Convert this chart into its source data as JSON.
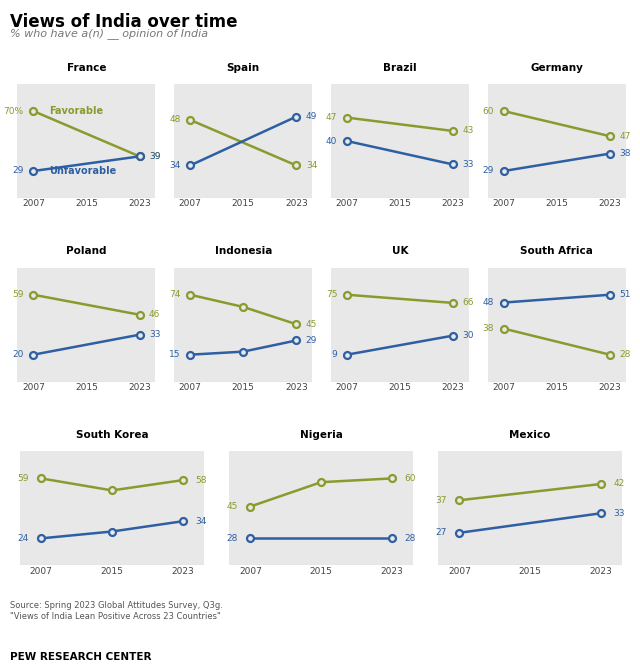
{
  "title": "Views of India over time",
  "subtitle": "% who have a(n) __ opinion of India",
  "source": "Source: Spring 2023 Global Attitudes Survey, Q3g.\n\"Views of India Lean Positive Across 23 Countries\"",
  "pew": "PEW RESEARCH CENTER",
  "years": [
    2007,
    2015,
    2023
  ],
  "fav_color": "#8b9a2e",
  "unfav_color": "#2e5fa3",
  "bg_color": "#e8e8e8",
  "charts": [
    {
      "title": "France",
      "favorable": [
        70,
        null,
        39
      ],
      "unfavorable": [
        29,
        null,
        39
      ],
      "show_legend": true,
      "row": 0,
      "col": 0
    },
    {
      "title": "Spain",
      "favorable": [
        48,
        null,
        34
      ],
      "unfavorable": [
        34,
        null,
        49
      ],
      "show_legend": false,
      "row": 0,
      "col": 1
    },
    {
      "title": "Brazil",
      "favorable": [
        47,
        null,
        43
      ],
      "unfavorable": [
        40,
        null,
        33
      ],
      "show_legend": false,
      "row": 0,
      "col": 2
    },
    {
      "title": "Germany",
      "favorable": [
        60,
        null,
        47
      ],
      "unfavorable": [
        29,
        null,
        38
      ],
      "show_legend": false,
      "row": 0,
      "col": 3
    },
    {
      "title": "Poland",
      "favorable": [
        59,
        null,
        46
      ],
      "unfavorable": [
        20,
        null,
        33
      ],
      "show_legend": false,
      "row": 1,
      "col": 0
    },
    {
      "title": "Indonesia",
      "favorable": [
        74,
        62,
        45
      ],
      "unfavorable": [
        15,
        18,
        29
      ],
      "show_legend": false,
      "row": 1,
      "col": 1
    },
    {
      "title": "UK",
      "favorable": [
        75,
        null,
        66
      ],
      "unfavorable": [
        9,
        null,
        30
      ],
      "show_legend": false,
      "row": 1,
      "col": 2
    },
    {
      "title": "South Africa",
      "favorable": [
        38,
        null,
        28
      ],
      "unfavorable": [
        48,
        null,
        51
      ],
      "show_legend": false,
      "row": 1,
      "col": 3
    },
    {
      "title": "South Korea",
      "favorable": [
        59,
        52,
        58
      ],
      "unfavorable": [
        24,
        28,
        34
      ],
      "show_legend": false,
      "row": 2,
      "col": 0
    },
    {
      "title": "Nigeria",
      "favorable": [
        45,
        58,
        60
      ],
      "unfavorable": [
        28,
        null,
        28
      ],
      "show_legend": false,
      "row": 2,
      "col": 1
    },
    {
      "title": "Mexico",
      "favorable": [
        37,
        null,
        42
      ],
      "unfavorable": [
        27,
        null,
        33
      ],
      "show_legend": false,
      "row": 2,
      "col": 2
    }
  ]
}
